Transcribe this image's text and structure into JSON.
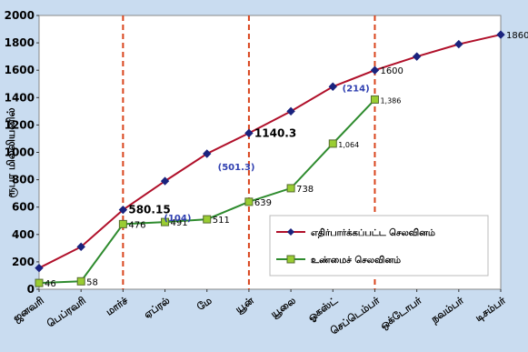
{
  "chart_data": {
    "type": "line",
    "categories": [
      "ஜனவரி",
      "பெப்ரவரி",
      "மார்ச்",
      "ஏப்ரல்",
      "மே",
      "யூன்",
      "யூலை",
      "ஓகஸ்ட்",
      "செப்டெம்பர்",
      "ஒக்டோபர்",
      "நவம்பர்",
      "டிசம்பர்"
    ],
    "series": [
      {
        "name": "எதிர்பார்க்கப்பட்ட செலவினம்",
        "color": "#b0102a",
        "marker_color": "#1a237e",
        "marker": "diamond",
        "values": [
          155,
          310,
          580.15,
          790,
          990,
          1140.3,
          1300,
          1480,
          1600,
          1700,
          1790,
          1860
        ]
      },
      {
        "name": "உண்மைச் செலவினம்",
        "color": "#2e8b2e",
        "marker_color": "#9acd32",
        "marker": "square",
        "values": [
          46,
          58,
          476,
          491,
          511,
          639,
          738,
          1064,
          1386,
          null,
          null,
          null
        ]
      }
    ],
    "labels": [
      {
        "text": "580.15",
        "series": 0,
        "index": 2
      },
      {
        "text": "1140.3",
        "series": 0,
        "index": 5
      },
      {
        "text": "1600",
        "series": 0,
        "index": 8
      },
      {
        "text": "1860",
        "series": 0,
        "index": 11
      },
      {
        "text": "46",
        "series": 1,
        "index": 0
      },
      {
        "text": "58",
        "series": 1,
        "index": 1
      },
      {
        "text": "476",
        "series": 1,
        "index": 2
      },
      {
        "text": "491",
        "series": 1,
        "index": 3
      },
      {
        "text": "511",
        "series": 1,
        "index": 4
      },
      {
        "text": "639",
        "series": 1,
        "index": 5
      },
      {
        "text": "738",
        "series": 1,
        "index": 6
      },
      {
        "text": "1,064",
        "series": 1,
        "index": 7
      },
      {
        "text": "1,386",
        "series": 1,
        "index": 8
      }
    ],
    "gap_labels": [
      {
        "text": "(104)",
        "x": 3.3,
        "y": 500
      },
      {
        "text": "(501.3)",
        "x": 4.7,
        "y": 870
      },
      {
        "text": "(214)",
        "x": 7.55,
        "y": 1445
      }
    ],
    "ylabel": "ரூபா மில்லியனில்",
    "ylim": [
      0,
      2000
    ],
    "yticks": [
      0,
      200,
      400,
      600,
      800,
      1000,
      1200,
      1400,
      1600,
      1800,
      2000
    ],
    "vlines": [
      2,
      5,
      8
    ],
    "vline_color": "#d9441c",
    "legend_position": "center-right",
    "grid": false
  }
}
